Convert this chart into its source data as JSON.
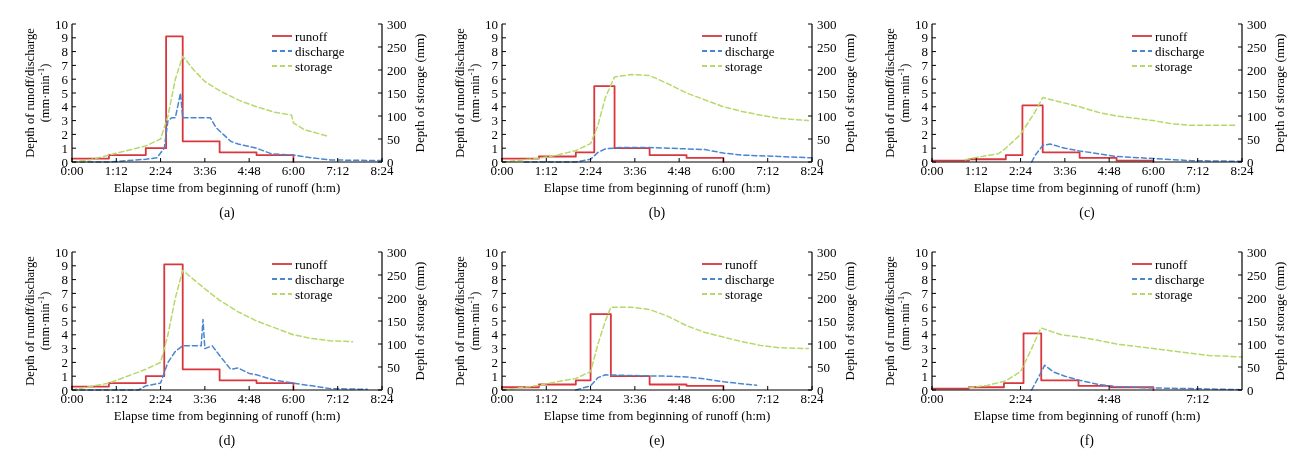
{
  "chart_data": [
    {
      "type": "line",
      "title": "(a)",
      "xlabel": "Elapse time from beginning of runoff (h:m)",
      "ylabel": "Depth of runoff/discharge (mm·min$^{-1}$)",
      "y2label": "Depth of storage (mm)",
      "xlim": [
        0,
        8.4
      ],
      "xticks": [
        {
          "value": 0,
          "label": "0:00"
        },
        {
          "value": 1.2,
          "label": "1:12"
        },
        {
          "value": 2.4,
          "label": "2:24"
        },
        {
          "value": 3.6,
          "label": "3:36"
        },
        {
          "value": 4.8,
          "label": "4:48"
        },
        {
          "value": 6,
          "label": "6:00"
        },
        {
          "value": 7.2,
          "label": "7:12"
        },
        {
          "value": 8.4,
          "label": "8:24"
        }
      ],
      "ylim": [
        0,
        10
      ],
      "yticks": [
        0,
        1,
        2,
        3,
        4,
        5,
        6,
        7,
        8,
        9,
        10
      ],
      "y2lim": [
        0,
        300
      ],
      "y2ticks": [
        0,
        50,
        100,
        150,
        200,
        250,
        300
      ],
      "legend": "top right",
      "grid": false,
      "series": [
        {
          "name": "runoff",
          "type": "step",
          "color": "#d9363e",
          "line_style": "solid",
          "x": [
            0,
            1.0,
            2.0,
            2.55,
            3.0,
            4.0,
            5.0,
            6.0
          ],
          "values": [
            0.25,
            0.5,
            1.0,
            9.1,
            1.5,
            0.7,
            0.5,
            0
          ]
        },
        {
          "name": "discharge",
          "color": "#4a86d0",
          "line_style": "dashed",
          "x": [
            0,
            1.0,
            1.5,
            2.0,
            2.3,
            2.5,
            2.6,
            2.7,
            2.8,
            2.94,
            3.0,
            3.3,
            3.75,
            3.9,
            4.1,
            4.3,
            4.5,
            5.0,
            5.4,
            6.0,
            6.5,
            7.0,
            8.4
          ],
          "values": [
            0,
            0,
            0.1,
            0.2,
            0.3,
            1.0,
            3.0,
            3.2,
            3.2,
            5.0,
            3.2,
            3.2,
            3.2,
            2.5,
            2.0,
            1.5,
            1.3,
            1.0,
            0.6,
            0.5,
            0.3,
            0.15,
            0.1
          ]
        },
        {
          "name": "storage",
          "axis": "y2",
          "color": "#b5d96a",
          "line_style": "dashed",
          "x": [
            0,
            0.5,
            1.0,
            1.5,
            2.0,
            2.4,
            2.6,
            2.8,
            3.0,
            3.3,
            3.6,
            4.0,
            4.5,
            5.0,
            5.5,
            5.95,
            6.0,
            6.3,
            6.9
          ],
          "values": [
            0,
            5,
            15,
            25,
            35,
            50,
            100,
            180,
            230,
            200,
            175,
            155,
            135,
            120,
            108,
            102,
            85,
            70,
            57
          ]
        }
      ]
    },
    {
      "type": "line",
      "title": "(b)",
      "xlabel": "Elapse time from beginning of runoff (h:m)",
      "ylabel": "Depth of runoff/discharge (mm·min$^{-1}$)",
      "y2label": "Depth of storage (mm)",
      "xlim": [
        0,
        8.4
      ],
      "xticks": [
        {
          "value": 0,
          "label": "0:00"
        },
        {
          "value": 1.2,
          "label": "1:12"
        },
        {
          "value": 2.4,
          "label": "2:24"
        },
        {
          "value": 3.6,
          "label": "3:36"
        },
        {
          "value": 4.8,
          "label": "4:48"
        },
        {
          "value": 6,
          "label": "6:00"
        },
        {
          "value": 7.2,
          "label": "7:12"
        },
        {
          "value": 8.4,
          "label": "8:24"
        }
      ],
      "ylim": [
        0,
        10
      ],
      "yticks": [
        0,
        1,
        2,
        3,
        4,
        5,
        6,
        7,
        8,
        9,
        10
      ],
      "y2lim": [
        0,
        300
      ],
      "y2ticks": [
        0,
        50,
        100,
        150,
        200,
        250,
        300
      ],
      "legend": "top right",
      "grid": false,
      "series": [
        {
          "name": "runoff",
          "type": "step",
          "color": "#d9363e",
          "line_style": "solid",
          "x": [
            0,
            1.0,
            2.0,
            2.5,
            3.05,
            4.0,
            5.0,
            6.0
          ],
          "values": [
            0.25,
            0.4,
            0.7,
            5.5,
            1.0,
            0.5,
            0.3,
            0
          ]
        },
        {
          "name": "discharge",
          "color": "#4a86d0",
          "line_style": "dashed",
          "x": [
            0.6,
            2.0,
            2.4,
            2.6,
            2.8,
            3.2,
            4.0,
            5.0,
            5.5,
            6.0,
            6.5,
            7.5,
            8.4
          ],
          "values": [
            0,
            0,
            0.2,
            0.7,
            0.95,
            1.05,
            1.05,
            0.95,
            0.9,
            0.65,
            0.5,
            0.4,
            0.3
          ]
        },
        {
          "name": "storage",
          "axis": "y2",
          "color": "#b5d96a",
          "line_style": "dashed",
          "x": [
            0,
            1.0,
            1.5,
            2.0,
            2.4,
            2.6,
            2.8,
            3.05,
            3.5,
            4.0,
            4.5,
            5.0,
            5.5,
            6.0,
            6.5,
            7.0,
            7.5,
            8.3
          ],
          "values": [
            0,
            8,
            15,
            25,
            40,
            80,
            140,
            185,
            190,
            188,
            170,
            150,
            135,
            120,
            110,
            102,
            95,
            90
          ]
        }
      ]
    },
    {
      "type": "line",
      "title": "(c)",
      "xlabel": "Elapse time from beginning of runoff (h:m)",
      "ylabel": "Depth of runoff/discharge (mm·min$^{-1}$)",
      "y2label": "Depth of storage (mm)",
      "xlim": [
        0,
        8.4
      ],
      "xticks": [
        {
          "value": 0,
          "label": "0:00"
        },
        {
          "value": 1.2,
          "label": "1:12"
        },
        {
          "value": 2.4,
          "label": "2:24"
        },
        {
          "value": 3.6,
          "label": "3:36"
        },
        {
          "value": 4.8,
          "label": "4:48"
        },
        {
          "value": 6,
          "label": "6:00"
        },
        {
          "value": 7.2,
          "label": "7:12"
        },
        {
          "value": 8.4,
          "label": "8:24"
        }
      ],
      "ylim": [
        0,
        10
      ],
      "yticks": [
        0,
        1,
        2,
        3,
        4,
        5,
        6,
        7,
        8,
        9,
        10
      ],
      "y2lim": [
        0,
        300
      ],
      "y2ticks": [
        0,
        50,
        100,
        150,
        200,
        250,
        300
      ],
      "legend": "top right",
      "grid": false,
      "series": [
        {
          "name": "runoff",
          "type": "step",
          "color": "#d9363e",
          "line_style": "solid",
          "x": [
            0,
            1.0,
            2.0,
            2.45,
            3.0,
            4.0,
            5.0,
            6.0
          ],
          "values": [
            0.1,
            0.2,
            0.5,
            4.1,
            0.7,
            0.3,
            0.1,
            0
          ]
        },
        {
          "name": "discharge",
          "color": "#4a86d0",
          "line_style": "dashed",
          "x": [
            2.7,
            2.8,
            3.0,
            3.2,
            3.6,
            4.0,
            4.5,
            5.0,
            6.0,
            7.0,
            8.4
          ],
          "values": [
            0,
            0.5,
            1.2,
            1.3,
            1.0,
            0.8,
            0.6,
            0.4,
            0.25,
            0.1,
            0.05
          ]
        },
        {
          "name": "storage",
          "axis": "y2",
          "color": "#b5d96a",
          "line_style": "dashed",
          "x": [
            0.9,
            1.2,
            1.8,
            2.0,
            2.4,
            2.8,
            3.0,
            3.5,
            4.0,
            4.5,
            5.0,
            5.5,
            6.0,
            6.5,
            7.0,
            8.2
          ],
          "values": [
            5,
            10,
            18,
            30,
            60,
            110,
            140,
            130,
            120,
            108,
            100,
            95,
            90,
            83,
            80,
            80
          ]
        }
      ]
    },
    {
      "type": "line",
      "title": "(d)",
      "xlabel": "Elapse time from beginning of runoff (h:m)",
      "ylabel": "Depth of runoff/discharge (mm·min$^{-1}$)",
      "y2label": "Depth of storage (mm)",
      "xlim": [
        0,
        8.4
      ],
      "xticks": [
        {
          "value": 0,
          "label": "0:00"
        },
        {
          "value": 1.2,
          "label": "1:12"
        },
        {
          "value": 2.4,
          "label": "2:24"
        },
        {
          "value": 3.6,
          "label": "3:36"
        },
        {
          "value": 4.8,
          "label": "4:48"
        },
        {
          "value": 6,
          "label": "6:00"
        },
        {
          "value": 7.2,
          "label": "7:12"
        },
        {
          "value": 8.4,
          "label": "8:24"
        }
      ],
      "ylim": [
        0,
        10
      ],
      "yticks": [
        0,
        1,
        2,
        3,
        4,
        5,
        6,
        7,
        8,
        9,
        10
      ],
      "y2lim": [
        0,
        300
      ],
      "y2ticks": [
        0,
        50,
        100,
        150,
        200,
        250,
        300
      ],
      "legend": "top right",
      "grid": false,
      "series": [
        {
          "name": "runoff",
          "type": "step",
          "color": "#d9363e",
          "line_style": "solid",
          "x": [
            0,
            1.0,
            2.0,
            2.5,
            3.0,
            4.0,
            5.0,
            6.0
          ],
          "values": [
            0.25,
            0.5,
            1.0,
            9.1,
            1.5,
            0.7,
            0.5,
            0
          ]
        },
        {
          "name": "discharge",
          "color": "#4a86d0",
          "line_style": "dashed",
          "x": [
            0,
            1.8,
            2.0,
            2.4,
            2.6,
            2.8,
            3.0,
            3.5,
            3.55,
            3.6,
            3.8,
            4.0,
            4.3,
            4.5,
            4.8,
            5.0,
            5.5,
            6.0,
            6.5,
            7.0,
            8.0
          ],
          "values": [
            0,
            0,
            0.3,
            0.5,
            2.0,
            2.8,
            3.2,
            3.2,
            5.1,
            3.0,
            3.2,
            2.5,
            1.5,
            1.6,
            1.2,
            1.1,
            0.7,
            0.5,
            0.3,
            0.1,
            0.05
          ]
        },
        {
          "name": "storage",
          "axis": "y2",
          "color": "#b5d96a",
          "line_style": "dashed",
          "x": [
            0,
            1.0,
            1.5,
            2.0,
            2.4,
            2.6,
            2.8,
            3.0,
            3.3,
            3.6,
            4.0,
            4.5,
            5.0,
            5.5,
            6.0,
            6.5,
            7.0,
            7.6
          ],
          "values": [
            0,
            15,
            30,
            45,
            60,
            120,
            200,
            260,
            240,
            220,
            195,
            170,
            150,
            135,
            120,
            112,
            107,
            105
          ]
        }
      ]
    },
    {
      "type": "line",
      "title": "(e)",
      "xlabel": "Elapse time from beginning of runoff (h:m)",
      "ylabel": "Depth of runoff/discharge (mm·min$^{-1}$)",
      "y2label": "Depth of storage (mm)",
      "xlim": [
        0,
        8.4
      ],
      "xticks": [
        {
          "value": 0,
          "label": "0:00"
        },
        {
          "value": 1.2,
          "label": "1:12"
        },
        {
          "value": 2.4,
          "label": "2:24"
        },
        {
          "value": 3.6,
          "label": "3:36"
        },
        {
          "value": 4.8,
          "label": "4:48"
        },
        {
          "value": 6,
          "label": "6:00"
        },
        {
          "value": 7.2,
          "label": "7:12"
        },
        {
          "value": 8.4,
          "label": "8:24"
        }
      ],
      "ylim": [
        0,
        10
      ],
      "yticks": [
        0,
        1,
        2,
        3,
        4,
        5,
        6,
        7,
        8,
        9,
        10
      ],
      "y2lim": [
        0,
        300
      ],
      "y2ticks": [
        0,
        50,
        100,
        150,
        200,
        250,
        300
      ],
      "legend": "top right",
      "grid": false,
      "series": [
        {
          "name": "runoff",
          "type": "step",
          "color": "#d9363e",
          "line_style": "solid",
          "x": [
            0,
            1.0,
            2.0,
            2.4,
            2.95,
            4.0,
            5.0,
            6.0
          ],
          "values": [
            0.2,
            0.4,
            0.7,
            5.5,
            1.0,
            0.4,
            0.3,
            0
          ]
        },
        {
          "name": "discharge",
          "color": "#4a86d0",
          "line_style": "dashed",
          "x": [
            2.0,
            2.4,
            2.6,
            2.8,
            3.5,
            4.5,
            5.0,
            5.5,
            6.0,
            6.5,
            6.9
          ],
          "values": [
            0,
            0.3,
            0.9,
            1.1,
            1.05,
            1.0,
            0.95,
            0.8,
            0.6,
            0.45,
            0.35
          ]
        },
        {
          "name": "storage",
          "axis": "y2",
          "color": "#b5d96a",
          "line_style": "dashed",
          "x": [
            0,
            1.0,
            1.5,
            2.0,
            2.4,
            2.6,
            2.8,
            2.95,
            3.5,
            4.0,
            4.5,
            5.0,
            5.5,
            6.0,
            6.5,
            7.0,
            7.5,
            8.3
          ],
          "values": [
            0,
            10,
            18,
            25,
            40,
            100,
            150,
            180,
            180,
            175,
            160,
            140,
            125,
            115,
            105,
            97,
            92,
            90
          ]
        }
      ]
    },
    {
      "type": "line",
      "title": "(f)",
      "xlabel": "Elapse time from beginning of runoff (h:m)",
      "ylabel": "Depth of runoff/discharge (mm·min$^{-1}$)",
      "y2label": "Depth of storage (mm)",
      "xlim": [
        0,
        8.4
      ],
      "xticks": [
        {
          "value": 0,
          "label": "0:00"
        },
        {
          "value": 2.4,
          "label": "2:24"
        },
        {
          "value": 4.8,
          "label": "4:48"
        },
        {
          "value": 7.2,
          "label": "7:12"
        }
      ],
      "ylim": [
        0,
        10
      ],
      "yticks": [
        0,
        1,
        2,
        3,
        4,
        5,
        6,
        7,
        8,
        9,
        10
      ],
      "y2lim": [
        0,
        300
      ],
      "y2ticks": [
        0,
        50,
        100,
        150,
        200,
        250,
        300
      ],
      "legend": "top right",
      "grid": false,
      "series": [
        {
          "name": "runoff",
          "type": "step",
          "color": "#d9363e",
          "line_style": "solid",
          "x": [
            0,
            1.0,
            1.95,
            2.48,
            2.96,
            3.97,
            4.84,
            6.0
          ],
          "values": [
            0.1,
            0.2,
            0.5,
            4.1,
            0.7,
            0.3,
            0.2,
            0
          ]
        },
        {
          "name": "discharge",
          "color": "#4a86d0",
          "line_style": "dashed",
          "x": [
            2.7,
            2.8,
            3.0,
            3.05,
            3.3,
            3.6,
            4.0,
            4.5,
            5.0,
            6.0,
            7.0,
            8.4
          ],
          "values": [
            0,
            0.5,
            1.5,
            1.8,
            1.3,
            1.0,
            0.7,
            0.4,
            0.25,
            0.15,
            0.1,
            0.02
          ]
        },
        {
          "name": "storage",
          "axis": "y2",
          "color": "#b5d96a",
          "line_style": "dashed",
          "x": [
            1.0,
            1.5,
            2.0,
            2.4,
            2.7,
            2.95,
            3.5,
            4.0,
            4.5,
            5.0,
            5.5,
            6.0,
            6.5,
            7.0,
            7.5,
            8.4
          ],
          "values": [
            5,
            10,
            20,
            40,
            90,
            135,
            120,
            115,
            108,
            100,
            95,
            90,
            85,
            80,
            75,
            72
          ]
        }
      ]
    }
  ]
}
